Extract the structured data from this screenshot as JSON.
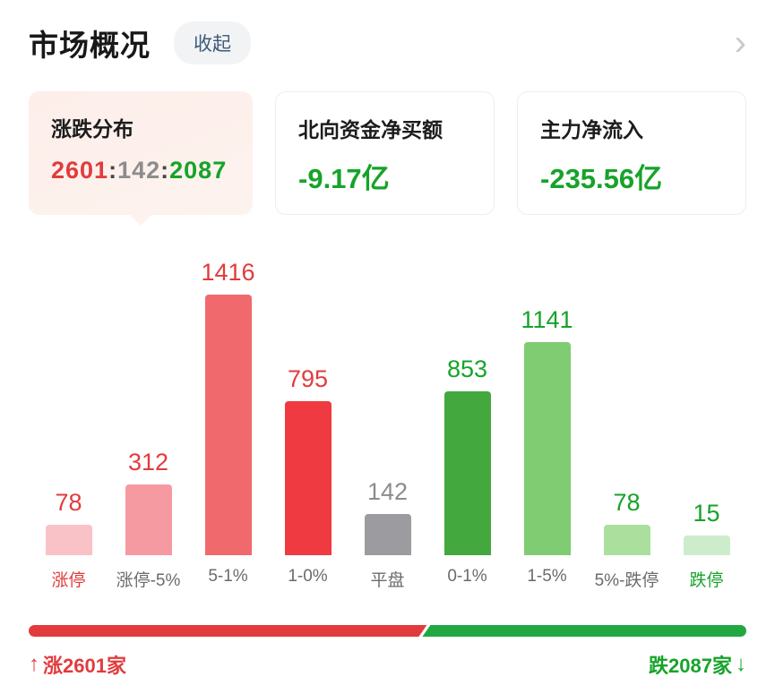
{
  "header": {
    "title": "市场概况",
    "collapse_button": "收起",
    "chevron": "›"
  },
  "cards": [
    {
      "title": "涨跌分布",
      "value_parts": {
        "up": "2601",
        "separator": ":",
        "flat": "142",
        "down": "2087"
      },
      "colors": {
        "up": "#e23b3d",
        "flat": "#8c8c8c",
        "down": "#16a329"
      }
    },
    {
      "title": "北向资金净买额",
      "value": "-9.17亿",
      "value_color": "#16a329"
    },
    {
      "title": "主力净流入",
      "value": "-235.56亿",
      "value_color": "#16a329"
    }
  ],
  "chart_data": {
    "type": "bar",
    "title": "涨跌分布",
    "categories": [
      "涨停",
      "涨停-5%",
      "5-1%",
      "1-0%",
      "平盘",
      "0-1%",
      "1-5%",
      "5%-跌停",
      "跌停"
    ],
    "values": [
      78,
      312,
      1416,
      795,
      142,
      853,
      1141,
      78,
      15
    ],
    "bar_colors": [
      "#f8c2c7",
      "#f59aa1",
      "#f0696d",
      "#ee3a40",
      "#9c9ca0",
      "#43a83e",
      "#80cc72",
      "#abdf9e",
      "#cdeccc"
    ],
    "value_label_colors": [
      "#e23b3d",
      "#e23b3d",
      "#e23b3d",
      "#e23b3d",
      "#8c8c8c",
      "#16a329",
      "#16a329",
      "#16a329",
      "#16a329"
    ],
    "category_label_colors": [
      "#e23b3d",
      "#6b6b6b",
      "#6b6b6b",
      "#6b6b6b",
      "#6b6b6b",
      "#6b6b6b",
      "#6b6b6b",
      "#6b6b6b",
      "#16a329"
    ],
    "xlabel": "",
    "ylabel": "",
    "ylim": [
      0,
      1416
    ],
    "grid": false,
    "legend": false
  },
  "footer": {
    "up_arrow": "↑",
    "up_label": "涨2601家",
    "up_count": 2601,
    "down_label": "跌2087家",
    "down_arrow": "↓",
    "down_count": 2087,
    "up_color": "#e23b3d",
    "down_color": "#21a843"
  }
}
